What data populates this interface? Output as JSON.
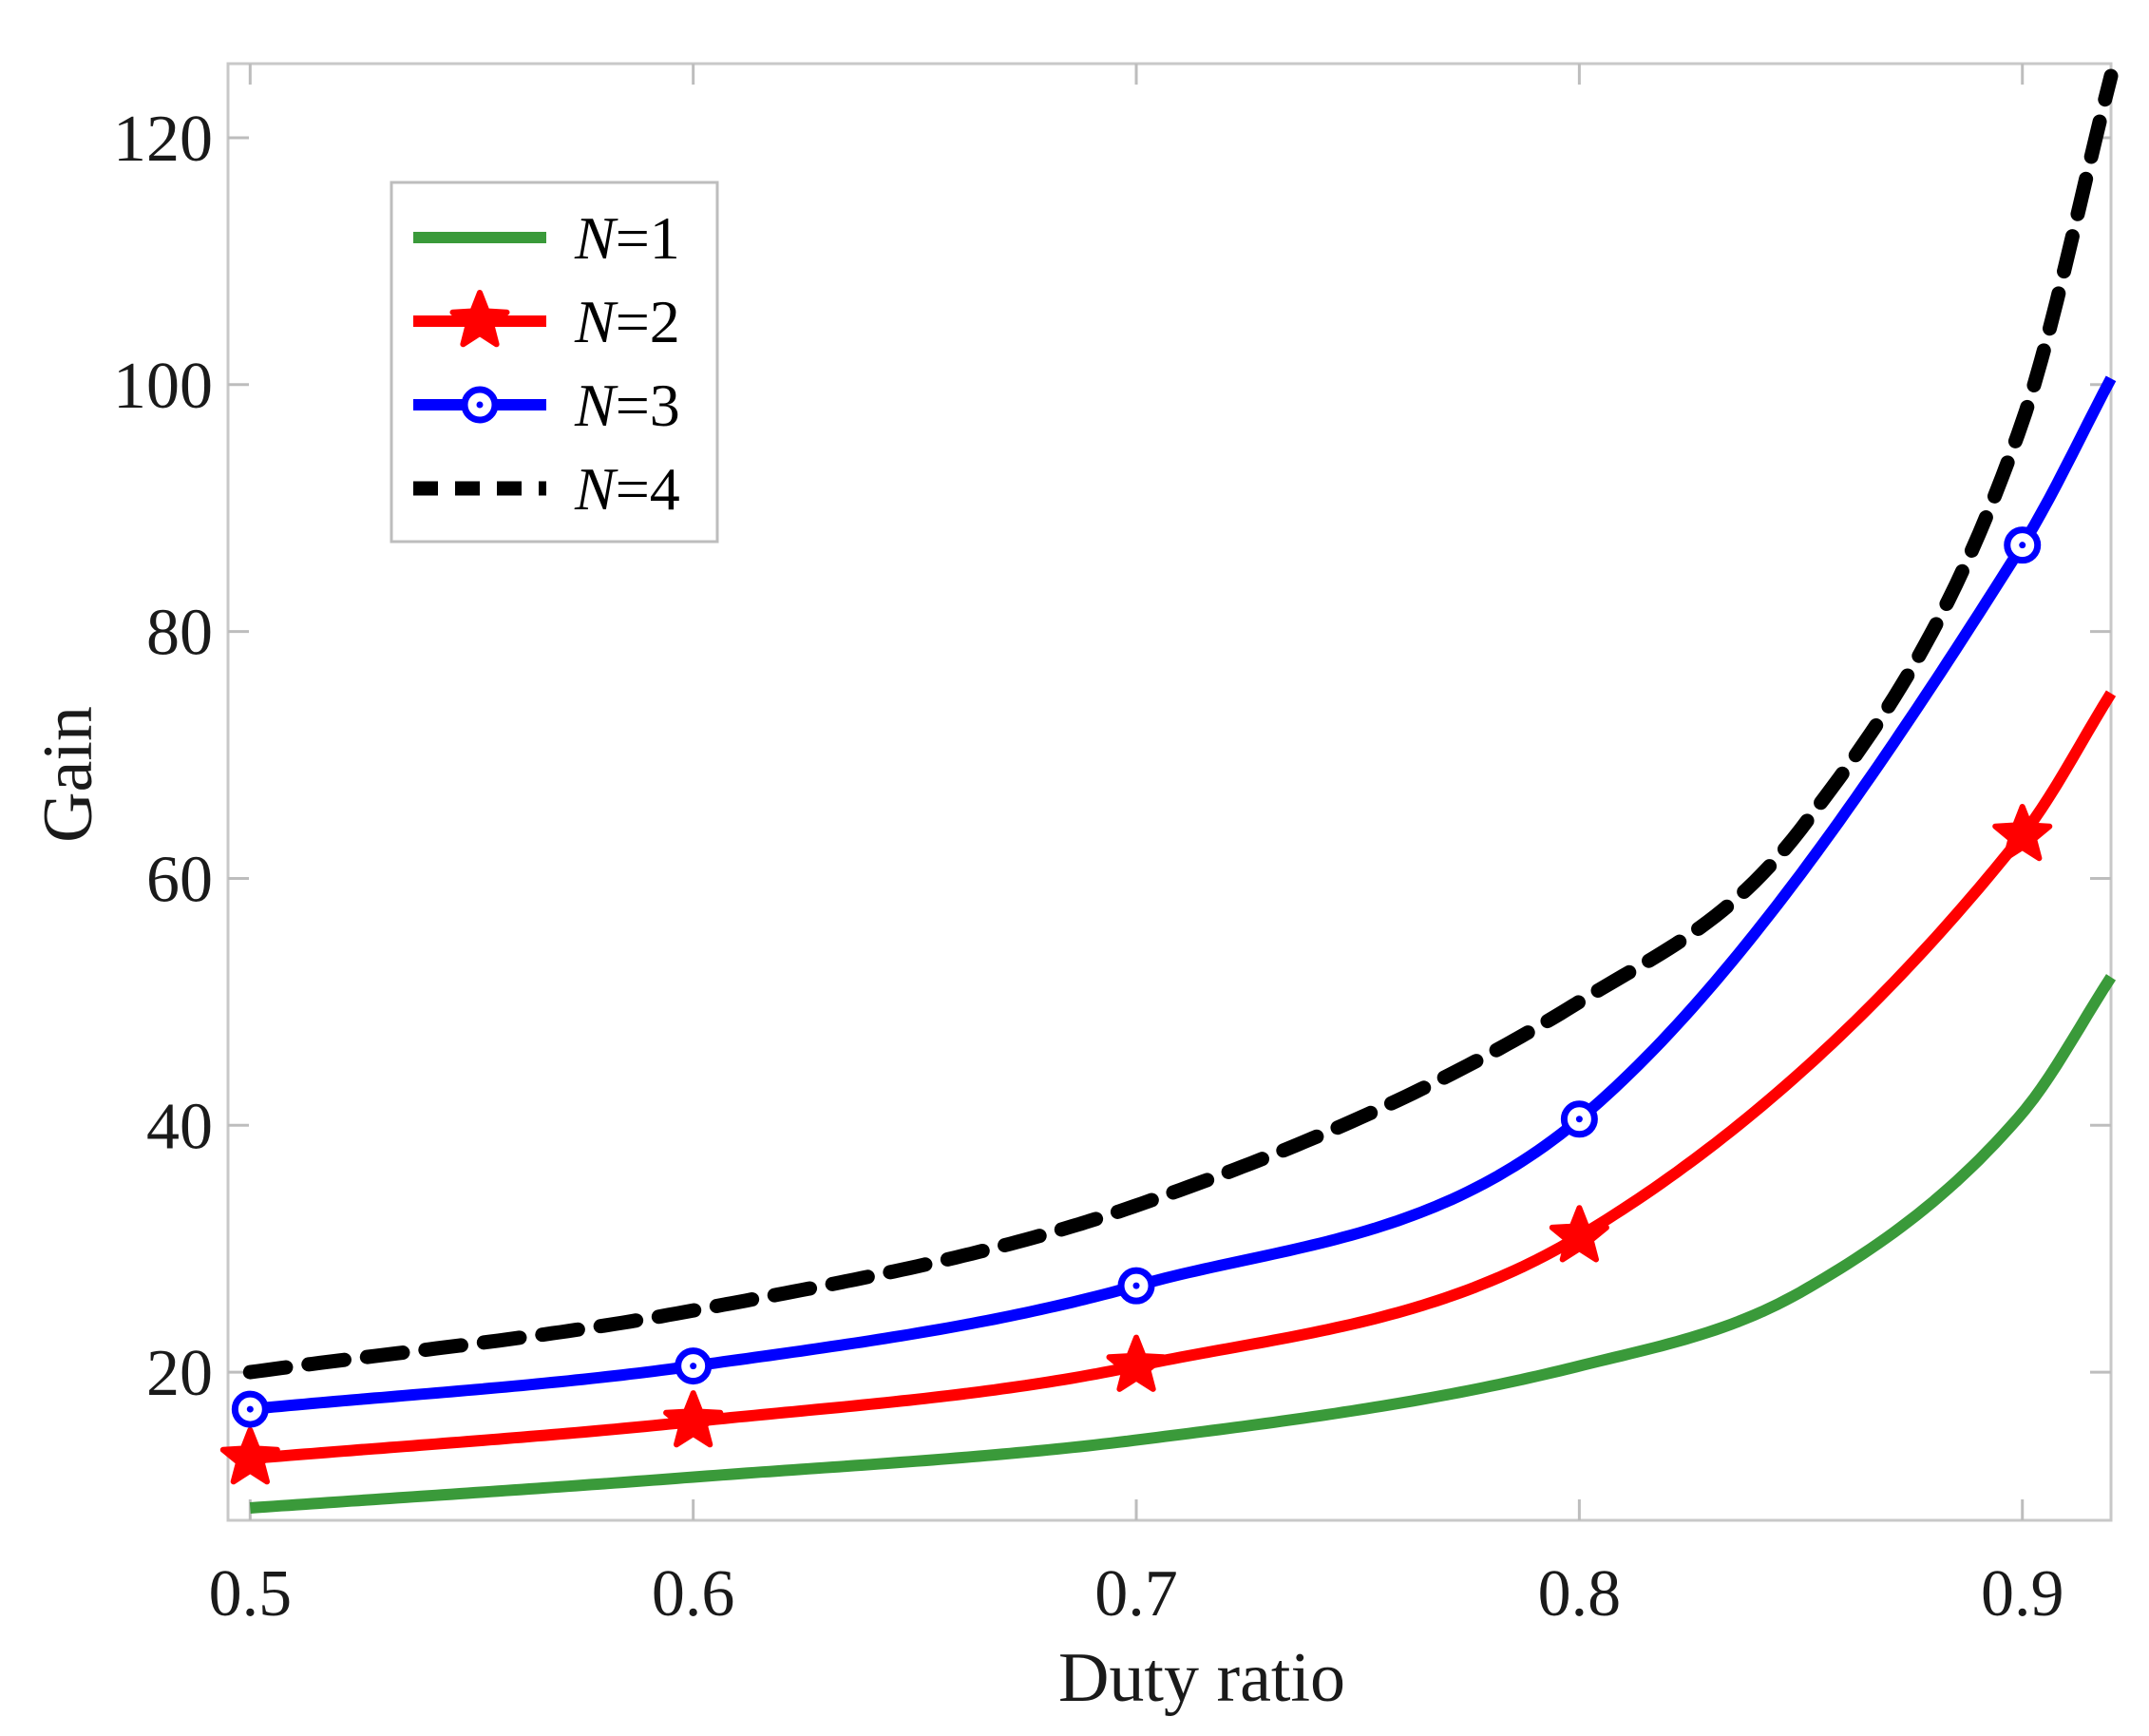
{
  "chart_data": {
    "type": "line",
    "title": "",
    "xlabel": "Duty ratio",
    "ylabel": "Gain",
    "xlim": [
      0.495,
      0.92
    ],
    "ylim": [
      8,
      126
    ],
    "xticks": [
      0.5,
      0.6,
      0.7,
      0.8,
      0.9
    ],
    "xtick_labels": [
      "0.5",
      "0.6",
      "0.7",
      "0.8",
      "0.9"
    ],
    "yticks": [
      20,
      40,
      60,
      80,
      100,
      120
    ],
    "ytick_labels": [
      "20",
      "40",
      "60",
      "80",
      "100",
      "120"
    ],
    "grid": false,
    "legend_position": "top-left",
    "series": [
      {
        "name": "N=1",
        "legend_prefix": "N",
        "legend_suffix": "=1",
        "color": "#3a9a3a",
        "style": "solid",
        "marker": "none",
        "x": [
          0.5,
          0.6,
          0.7,
          0.8,
          0.85,
          0.9,
          0.92
        ],
        "y": [
          9.0,
          11.5,
          14.5,
          20.5,
          26.5,
          41.0,
          52.0
        ]
      },
      {
        "name": "N=2",
        "legend_prefix": "N",
        "legend_suffix": "=2",
        "color": "#ff0000",
        "style": "solid",
        "marker": "star",
        "x": [
          0.5,
          0.6,
          0.7,
          0.8,
          0.9,
          0.92
        ],
        "y": [
          13.0,
          16.0,
          20.5,
          31.0,
          63.5,
          75.0
        ]
      },
      {
        "name": "N=3",
        "legend_prefix": "N",
        "legend_suffix": "=3",
        "color": "#0000ff",
        "style": "solid",
        "marker": "circle",
        "x": [
          0.5,
          0.6,
          0.7,
          0.8,
          0.9,
          0.92
        ],
        "y": [
          17.0,
          20.5,
          27.0,
          40.5,
          87.0,
          100.5
        ]
      },
      {
        "name": "N=4",
        "legend_prefix": "N",
        "legend_suffix": "=4",
        "color": "#000000",
        "style": "dashed",
        "marker": "none",
        "x": [
          0.5,
          0.6,
          0.7,
          0.8,
          0.85,
          0.9,
          0.92
        ],
        "y": [
          20.0,
          25.0,
          33.5,
          50.0,
          64.0,
          97.0,
          125.0
        ]
      }
    ],
    "marker_x": [
      0.5,
      0.6,
      0.7,
      0.8,
      0.9
    ]
  }
}
